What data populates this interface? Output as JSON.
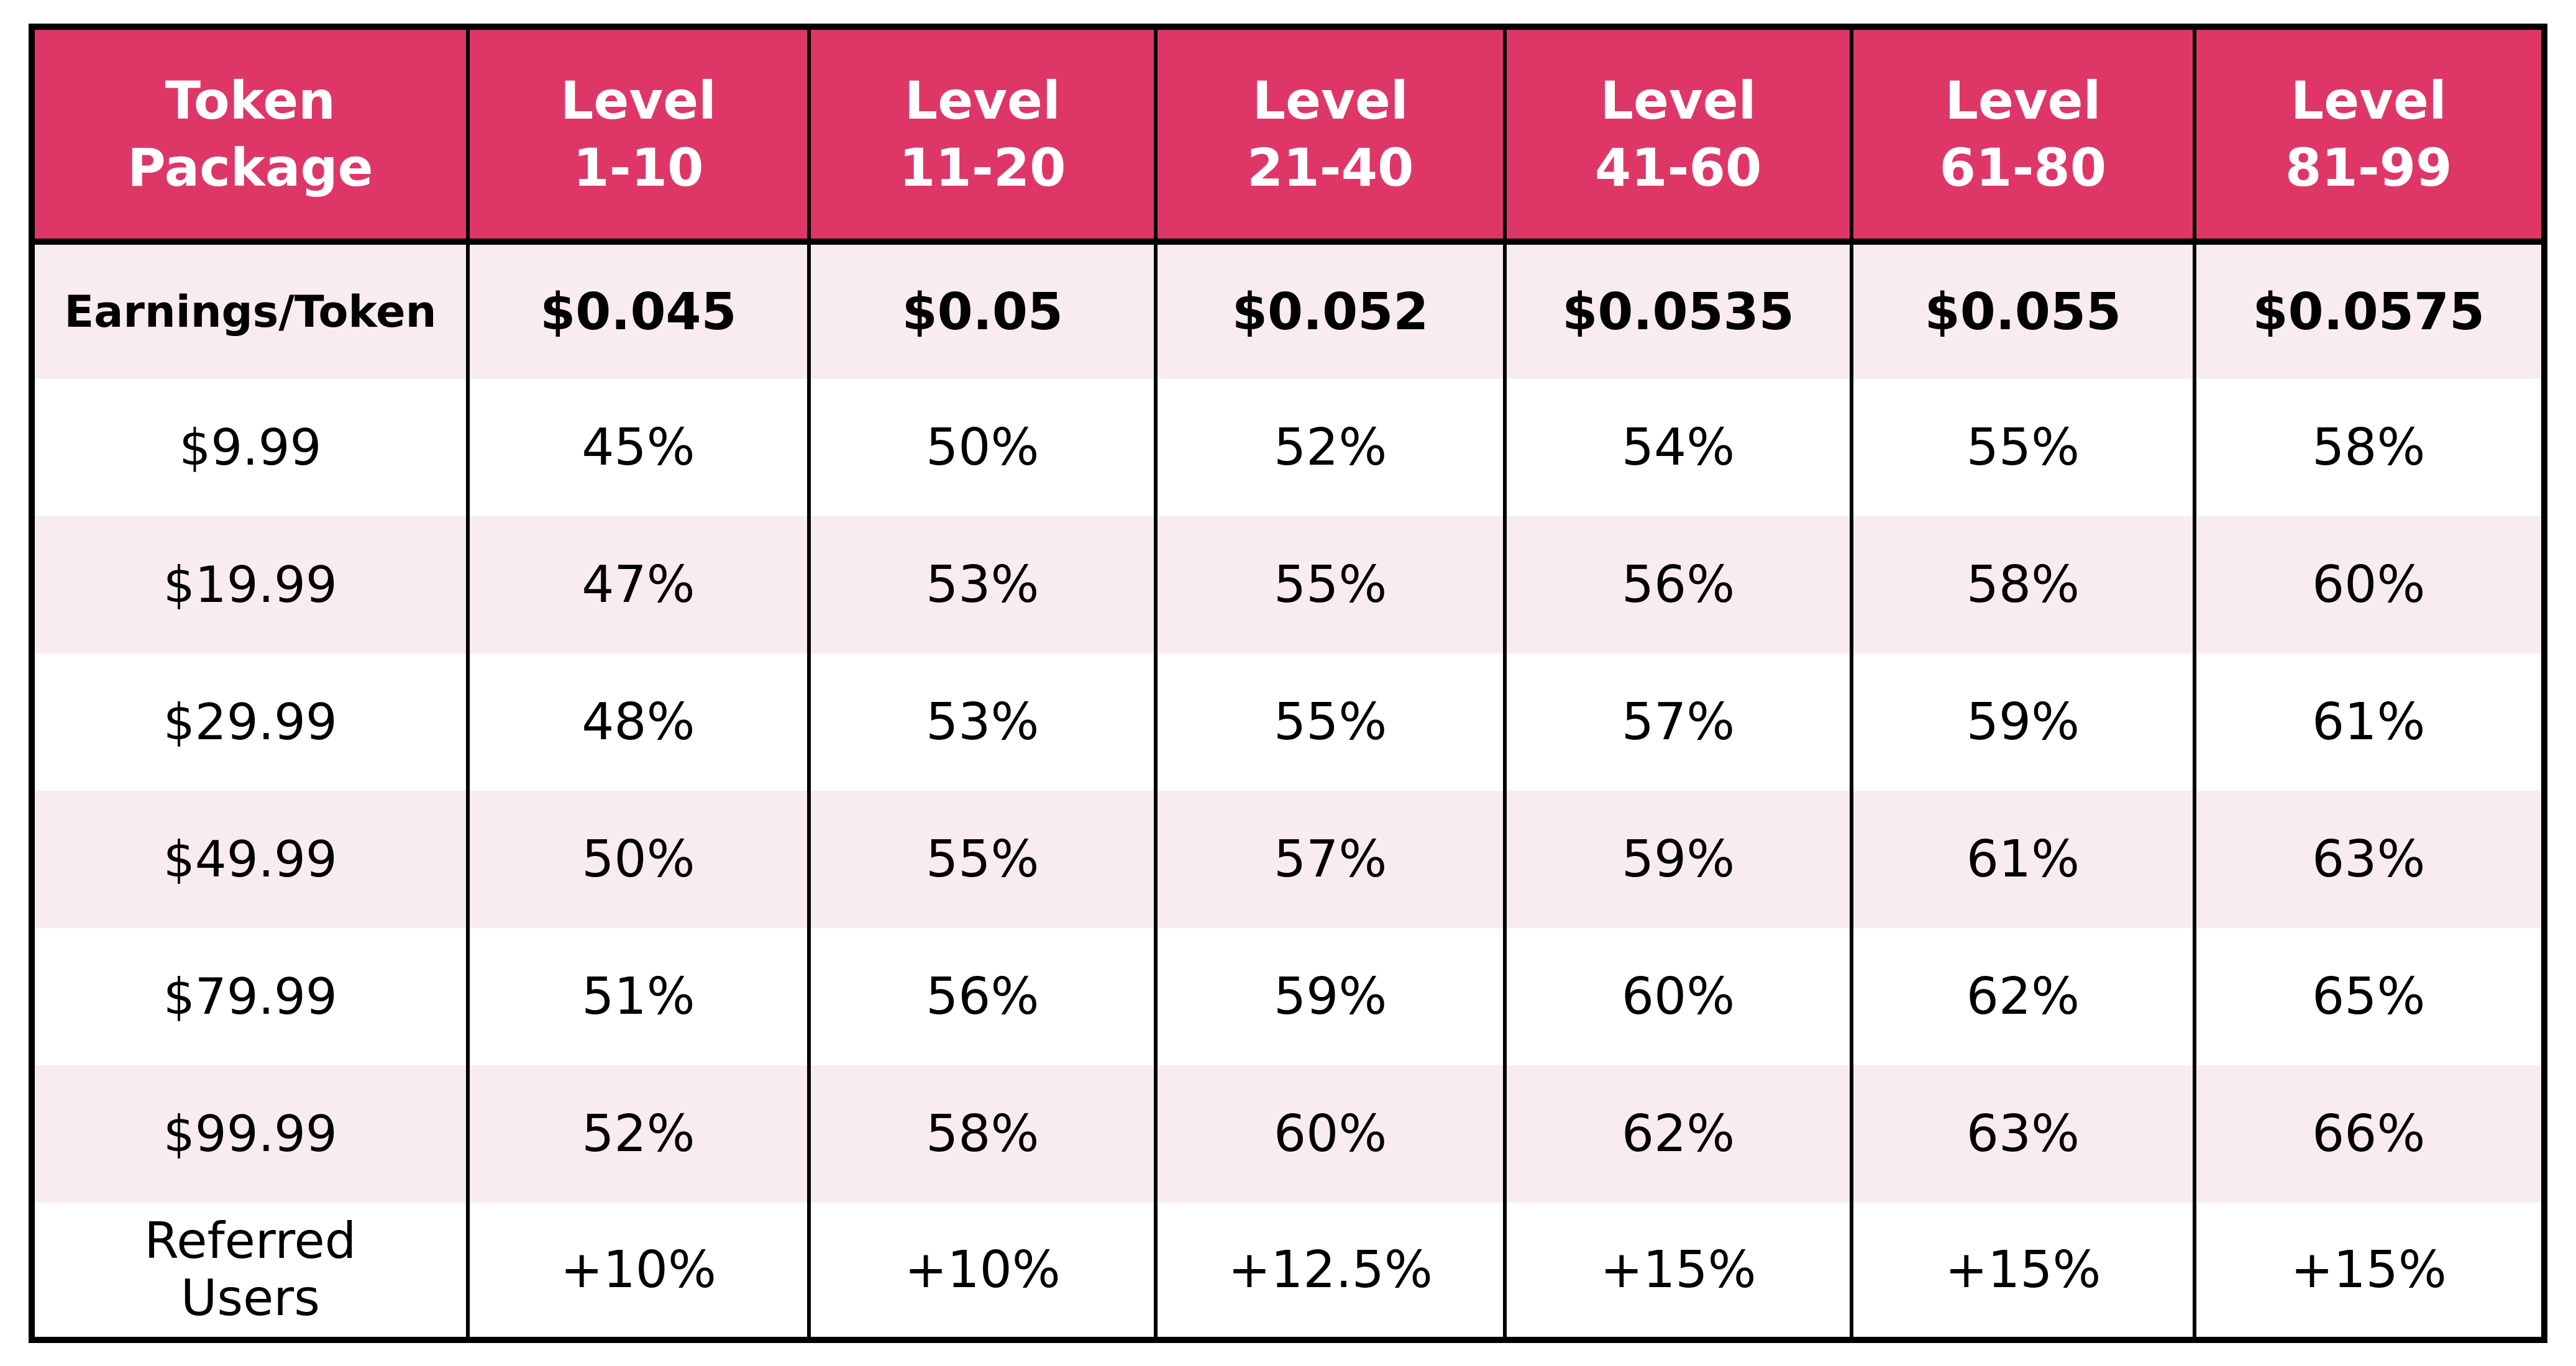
{
  "header": {
    "package": [
      "Token",
      "Package"
    ],
    "levels": [
      [
        "Level",
        "1-10"
      ],
      [
        "Level",
        "11-20"
      ],
      [
        "Level",
        "21-40"
      ],
      [
        "Level",
        "41-60"
      ],
      [
        "Level",
        "61-80"
      ],
      [
        "Level",
        "81-99"
      ]
    ]
  },
  "earnings_row": {
    "label": "Earnings/Token",
    "values": [
      "$0.045",
      "$0.05",
      "$0.052",
      "$0.0535",
      "$0.055",
      "$0.0575"
    ]
  },
  "packages": [
    {
      "price": "$9.99",
      "values": [
        "45%",
        "50%",
        "52%",
        "54%",
        "55%",
        "58%"
      ]
    },
    {
      "price": "$19.99",
      "values": [
        "47%",
        "53%",
        "55%",
        "56%",
        "58%",
        "60%"
      ]
    },
    {
      "price": "$29.99",
      "values": [
        "48%",
        "53%",
        "55%",
        "57%",
        "59%",
        "61%"
      ]
    },
    {
      "price": "$49.99",
      "values": [
        "50%",
        "55%",
        "57%",
        "59%",
        "61%",
        "63%"
      ]
    },
    {
      "price": "$79.99",
      "values": [
        "51%",
        "56%",
        "59%",
        "60%",
        "62%",
        "65%"
      ]
    },
    {
      "price": "$99.99",
      "values": [
        "52%",
        "58%",
        "60%",
        "62%",
        "63%",
        "66%"
      ]
    }
  ],
  "referred_row": {
    "label": [
      "Referred",
      "Users"
    ],
    "values": [
      "+10%",
      "+10%",
      "+12.5%",
      "+15%",
      "+15%",
      "+15%"
    ]
  },
  "colors": {
    "header_bg": "#de3767",
    "header_text": "#ffffff",
    "shaded_row": "#f8ecf0",
    "border": "#000000"
  }
}
